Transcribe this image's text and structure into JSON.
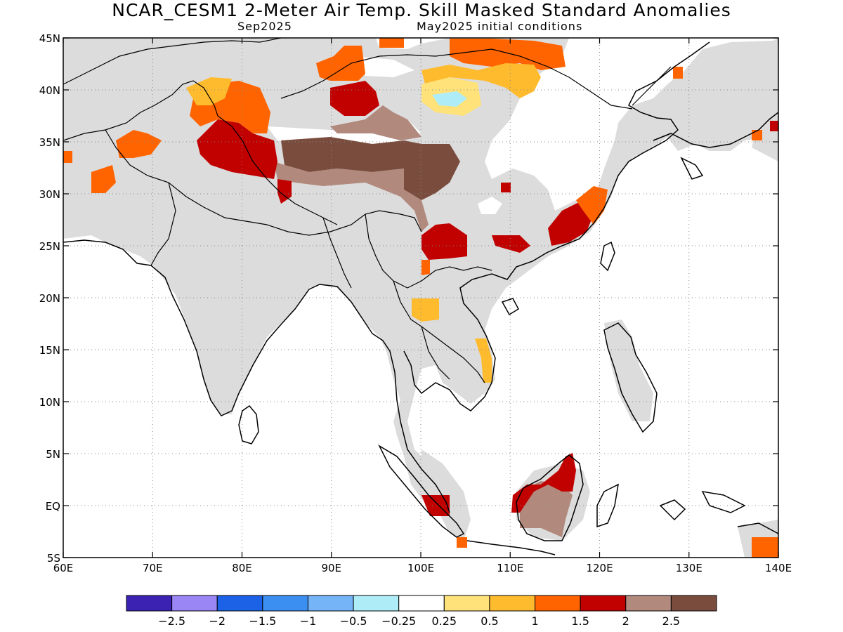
{
  "header": {
    "title": "NCAR_CESM1 2-Meter Air Temp. Skill Masked Standard Anomalies",
    "valid_month": "Sep2025",
    "init": "May2025 initial conditions"
  },
  "map": {
    "lon_labels": [
      "60E",
      "70E",
      "80E",
      "90E",
      "100E",
      "110E",
      "120E",
      "130E",
      "140E"
    ],
    "lat_labels": [
      "45N",
      "40N",
      "35N",
      "30N",
      "25N",
      "20N",
      "15N",
      "10N",
      "5N",
      "EQ",
      "5S"
    ],
    "masked_color": "#dcdcdc",
    "coast_color": "#000000",
    "grid_style": "dotted",
    "extent": {
      "lon_min": 60,
      "lon_max": 140,
      "lat_min": -5,
      "lat_max": 45
    }
  },
  "colorbar": {
    "colors": [
      "#3b22b3",
      "#9a86f5",
      "#1c62e6",
      "#3b8ff0",
      "#74b4f7",
      "#aeecf8",
      "#ffffff",
      "#ffe27a",
      "#ffbb2e",
      "#ff6400",
      "#c10000",
      "#b18a7d",
      "#7a4c3d"
    ],
    "labels": [
      "-2.5",
      "-2",
      "-1.5",
      "-1",
      "-0.5",
      "-0.25",
      "0.25",
      "0.5",
      "1",
      "1.5",
      "2",
      "2.5"
    ]
  }
}
